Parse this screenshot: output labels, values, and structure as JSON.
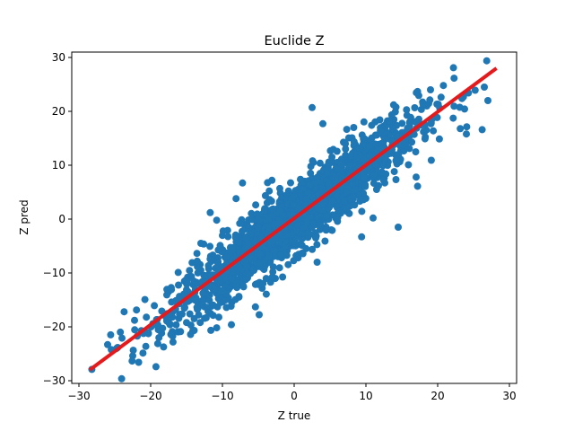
{
  "chart_data": {
    "type": "scatter",
    "title": "Euclide Z",
    "xlabel": "Z true",
    "ylabel": "Z pred",
    "xlim": [
      -31,
      31
    ],
    "ylim": [
      -30.5,
      31
    ],
    "xticks": [
      -30,
      -20,
      -10,
      0,
      10,
      20,
      30
    ],
    "yticks": [
      -30,
      -20,
      -10,
      0,
      10,
      20,
      30
    ],
    "xtick_labels": [
      "−30",
      "−20",
      "−10",
      "0",
      "10",
      "20",
      "30"
    ],
    "ytick_labels": [
      "−30",
      "−20",
      "−10",
      "0",
      "10",
      "20",
      "30"
    ],
    "grid": false,
    "point_color": "#1f77b4",
    "line_color": "#e41a1c",
    "fit_line": {
      "x": [
        -28.5,
        28.2
      ],
      "y": [
        -28.0,
        28.0
      ]
    },
    "n_points": 1800,
    "noise_sd": 3.2,
    "highlight_points": [
      {
        "x": 22.2,
        "y": 28.1
      },
      {
        "x": 20.8,
        "y": 24.8
      },
      {
        "x": 26.5,
        "y": 24.5
      },
      {
        "x": 27.0,
        "y": 22.0
      },
      {
        "x": 26.2,
        "y": 16.6
      },
      {
        "x": 24.0,
        "y": 15.8
      },
      {
        "x": 19.0,
        "y": 24.0
      },
      {
        "x": 2.5,
        "y": 20.7
      },
      {
        "x": -7.2,
        "y": 6.7
      },
      {
        "x": -8.1,
        "y": 3.8
      },
      {
        "x": -11.7,
        "y": 1.2
      },
      {
        "x": -13.0,
        "y": -4.5
      },
      {
        "x": -10.8,
        "y": -0.2
      },
      {
        "x": -23.7,
        "y": -17.2
      },
      {
        "x": -26.0,
        "y": -23.3
      },
      {
        "x": -24.0,
        "y": -22.1
      },
      {
        "x": -28.2,
        "y": -27.9
      },
      {
        "x": -21.3,
        "y": -20.7
      },
      {
        "x": -20.6,
        "y": -18.2
      },
      {
        "x": -17.3,
        "y": -19.5
      },
      {
        "x": -15.0,
        "y": -19.2
      },
      {
        "x": -10.5,
        "y": -18.2
      },
      {
        "x": -5.4,
        "y": -16.3
      },
      {
        "x": -11.0,
        "y": -13.0
      },
      {
        "x": 3.2,
        "y": -8.0
      },
      {
        "x": 9.4,
        "y": -3.3
      },
      {
        "x": 11.0,
        "y": 0.2
      },
      {
        "x": 14.5,
        "y": -1.5
      },
      {
        "x": 17.0,
        "y": 7.8
      },
      {
        "x": 17.2,
        "y": 6.1
      },
      {
        "x": 5.3,
        "y": -2.1
      },
      {
        "x": -3.1,
        "y": 7.2
      },
      {
        "x": 4.0,
        "y": 17.7
      },
      {
        "x": 8.3,
        "y": 17.0
      },
      {
        "x": 10.8,
        "y": 17.4
      },
      {
        "x": 15.5,
        "y": 14.9
      }
    ]
  }
}
